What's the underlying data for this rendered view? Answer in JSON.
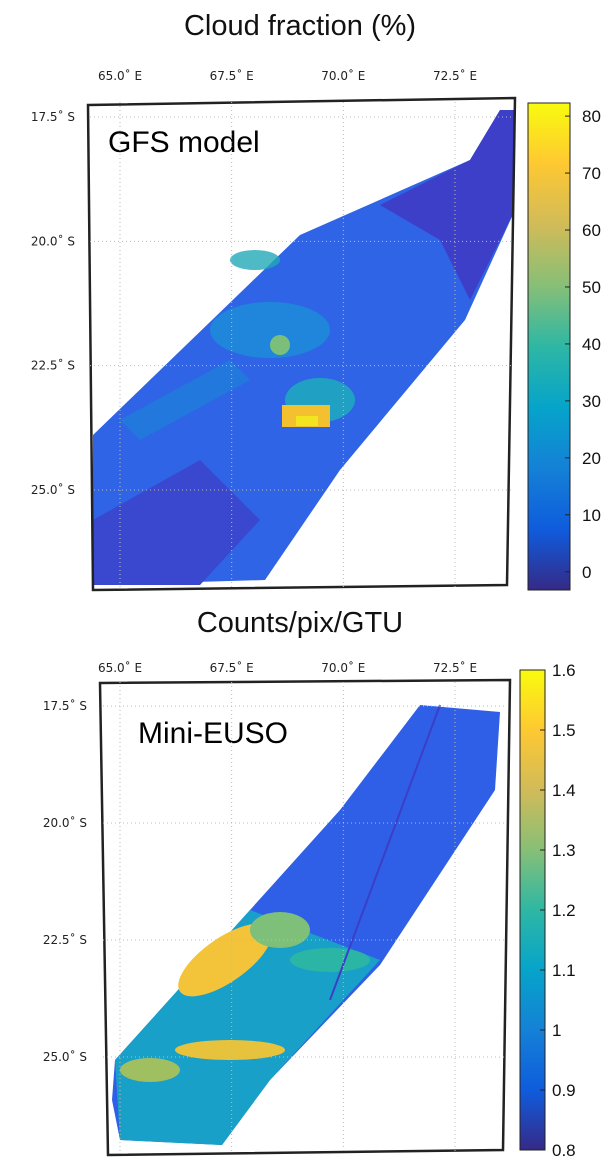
{
  "panels": [
    {
      "title": "Cloud fraction (%)",
      "label": "GFS model",
      "lon_ticks": [
        {
          "value": 65.0,
          "label": "65.0˚ E"
        },
        {
          "value": 67.5,
          "label": "67.5˚ E"
        },
        {
          "value": 70.0,
          "label": "70.0˚ E"
        },
        {
          "value": 72.5,
          "label": "72.5˚ E"
        }
      ],
      "lat_ticks": [
        {
          "value": -17.5,
          "label": "17.5˚ S"
        },
        {
          "value": -20.0,
          "label": "20.0˚ S"
        },
        {
          "value": -22.5,
          "label": "22.5˚ S"
        },
        {
          "value": -25.0,
          "label": "25.0˚ S"
        }
      ],
      "colorbar": {
        "lim": [
          -3.2,
          82.3
        ],
        "ticks": [
          0,
          10,
          20,
          30,
          40,
          50,
          60,
          70,
          80
        ]
      }
    },
    {
      "title": "Counts/pix/GTU",
      "label": "Mini-EUSO",
      "lon_ticks": [
        {
          "value": 65.0,
          "label": "65.0˚ E"
        },
        {
          "value": 67.5,
          "label": "67.5˚ E"
        },
        {
          "value": 70.0,
          "label": "70.0˚ E"
        },
        {
          "value": 72.5,
          "label": "72.5˚ E"
        }
      ],
      "lat_ticks": [
        {
          "value": -17.5,
          "label": "17.5˚ S"
        },
        {
          "value": -20.0,
          "label": "20.0˚ S"
        },
        {
          "value": -22.5,
          "label": "22.5˚ S"
        },
        {
          "value": -25.0,
          "label": "25.0˚ S"
        }
      ],
      "colorbar": {
        "lim": [
          0.8,
          1.6
        ],
        "ticks": [
          0.8,
          0.9,
          1,
          1.1,
          1.2,
          1.3,
          1.4,
          1.5,
          1.6
        ]
      }
    }
  ],
  "colormap": [
    "#352a87",
    "#0f5cdd",
    "#1481d6",
    "#06a4ca",
    "#2eb7a4",
    "#87bf77",
    "#d1bb59",
    "#fec832",
    "#f9fb0e"
  ]
}
